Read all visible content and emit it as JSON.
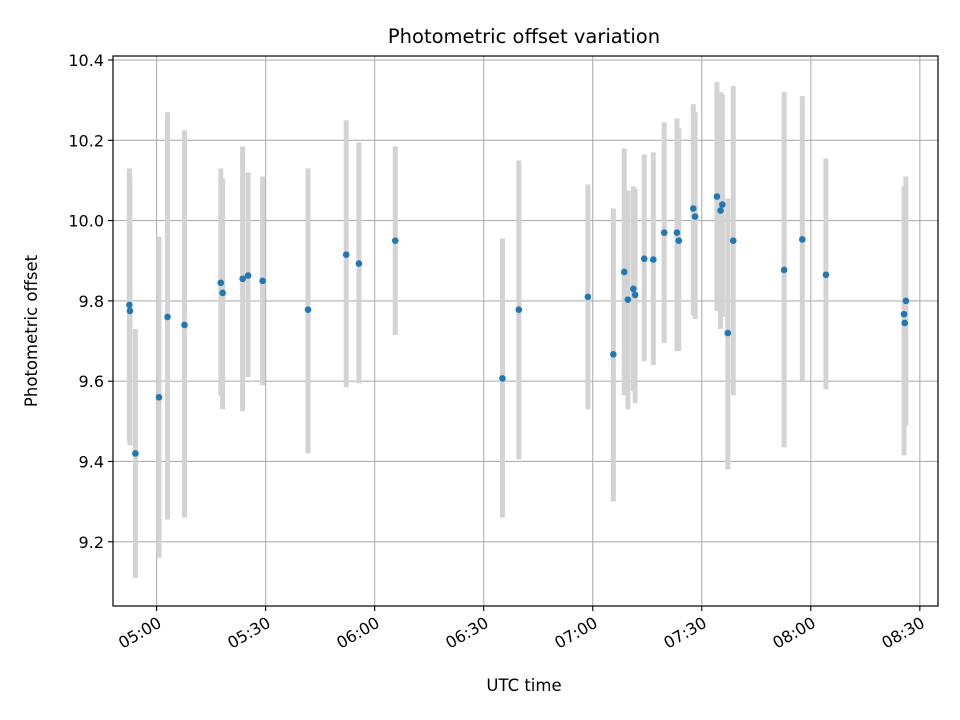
{
  "chart_data": {
    "type": "scatter",
    "title": "Photometric offset variation",
    "xlabel": "UTC time",
    "ylabel": "Photometric offset",
    "xlim": [
      "04:48",
      "08:35"
    ],
    "ylim": [
      9.04,
      10.41
    ],
    "x_ticks": [
      "05:00",
      "05:30",
      "06:00",
      "06:30",
      "07:00",
      "07:30",
      "08:00",
      "08:30"
    ],
    "y_ticks": [
      9.2,
      9.4,
      9.6,
      9.8,
      10.0,
      10.2,
      10.4
    ],
    "grid": true,
    "marker_color": "#1f77b4",
    "errorbar_color": "#d3d3d3",
    "series": [
      {
        "points": [
          {
            "t": "04:52:30",
            "y": 9.79,
            "ylo": 9.45,
            "yhi": 10.13
          },
          {
            "t": "04:52:40",
            "y": 9.775,
            "ylo": 9.44,
            "yhi": 10.11
          },
          {
            "t": "04:54:10",
            "y": 9.42,
            "ylo": 9.11,
            "yhi": 9.73
          },
          {
            "t": "05:00:40",
            "y": 9.56,
            "ylo": 9.16,
            "yhi": 9.96
          },
          {
            "t": "05:03:00",
            "y": 9.76,
            "ylo": 9.255,
            "yhi": 10.27
          },
          {
            "t": "05:07:40",
            "y": 9.74,
            "ylo": 9.26,
            "yhi": 10.225
          },
          {
            "t": "05:17:40",
            "y": 9.845,
            "ylo": 9.565,
            "yhi": 10.13
          },
          {
            "t": "05:18:10",
            "y": 9.82,
            "ylo": 9.53,
            "yhi": 10.105
          },
          {
            "t": "05:23:40",
            "y": 9.855,
            "ylo": 9.525,
            "yhi": 10.185
          },
          {
            "t": "05:25:10",
            "y": 9.863,
            "ylo": 9.61,
            "yhi": 10.12
          },
          {
            "t": "05:29:10",
            "y": 9.85,
            "ylo": 9.59,
            "yhi": 10.11
          },
          {
            "t": "05:41:40",
            "y": 9.778,
            "ylo": 9.42,
            "yhi": 10.13
          },
          {
            "t": "05:52:10",
            "y": 9.915,
            "ylo": 9.585,
            "yhi": 10.25
          },
          {
            "t": "05:55:40",
            "y": 9.893,
            "ylo": 9.595,
            "yhi": 10.195
          },
          {
            "t": "06:05:40",
            "y": 9.95,
            "ylo": 9.715,
            "yhi": 10.185
          },
          {
            "t": "06:35:10",
            "y": 9.607,
            "ylo": 9.26,
            "yhi": 9.955
          },
          {
            "t": "06:39:40",
            "y": 9.778,
            "ylo": 9.405,
            "yhi": 10.15
          },
          {
            "t": "06:58:40",
            "y": 9.81,
            "ylo": 9.53,
            "yhi": 10.09
          },
          {
            "t": "07:05:40",
            "y": 9.667,
            "ylo": 9.3,
            "yhi": 10.03
          },
          {
            "t": "07:08:40",
            "y": 9.872,
            "ylo": 9.565,
            "yhi": 10.18
          },
          {
            "t": "07:09:40",
            "y": 9.803,
            "ylo": 9.53,
            "yhi": 10.075
          },
          {
            "t": "07:11:10",
            "y": 9.83,
            "ylo": 9.575,
            "yhi": 10.085
          },
          {
            "t": "07:11:40",
            "y": 9.815,
            "ylo": 9.545,
            "yhi": 10.08
          },
          {
            "t": "07:14:10",
            "y": 9.905,
            "ylo": 9.65,
            "yhi": 10.165
          },
          {
            "t": "07:16:40",
            "y": 9.903,
            "ylo": 9.64,
            "yhi": 10.17
          },
          {
            "t": "07:19:40",
            "y": 9.97,
            "ylo": 9.695,
            "yhi": 10.245
          },
          {
            "t": "07:23:10",
            "y": 9.97,
            "ylo": 9.675,
            "yhi": 10.255
          },
          {
            "t": "07:23:40",
            "y": 9.95,
            "ylo": 9.675,
            "yhi": 10.23
          },
          {
            "t": "07:27:40",
            "y": 10.03,
            "ylo": 9.765,
            "yhi": 10.29
          },
          {
            "t": "07:28:10",
            "y": 10.01,
            "ylo": 9.755,
            "yhi": 10.27
          },
          {
            "t": "07:34:10",
            "y": 10.06,
            "ylo": 9.775,
            "yhi": 10.345
          },
          {
            "t": "07:35:10",
            "y": 10.025,
            "ylo": 9.73,
            "yhi": 10.32
          },
          {
            "t": "07:35:40",
            "y": 10.04,
            "ylo": 9.76,
            "yhi": 10.315
          },
          {
            "t": "07:37:10",
            "y": 9.72,
            "ylo": 9.38,
            "yhi": 10.055
          },
          {
            "t": "07:38:40",
            "y": 9.95,
            "ylo": 9.565,
            "yhi": 10.335
          },
          {
            "t": "07:52:40",
            "y": 9.877,
            "ylo": 9.435,
            "yhi": 10.32
          },
          {
            "t": "07:57:40",
            "y": 9.953,
            "ylo": 9.6,
            "yhi": 10.31
          },
          {
            "t": "08:04:10",
            "y": 9.865,
            "ylo": 9.58,
            "yhi": 10.155
          },
          {
            "t": "08:25:40",
            "y": 9.767,
            "ylo": 9.415,
            "yhi": 10.085
          },
          {
            "t": "08:25:50",
            "y": 9.745,
            "ylo": 9.49,
            "yhi": 10.0
          },
          {
            "t": "08:26:10",
            "y": 9.8,
            "ylo": 9.49,
            "yhi": 10.11
          }
        ]
      }
    ]
  }
}
